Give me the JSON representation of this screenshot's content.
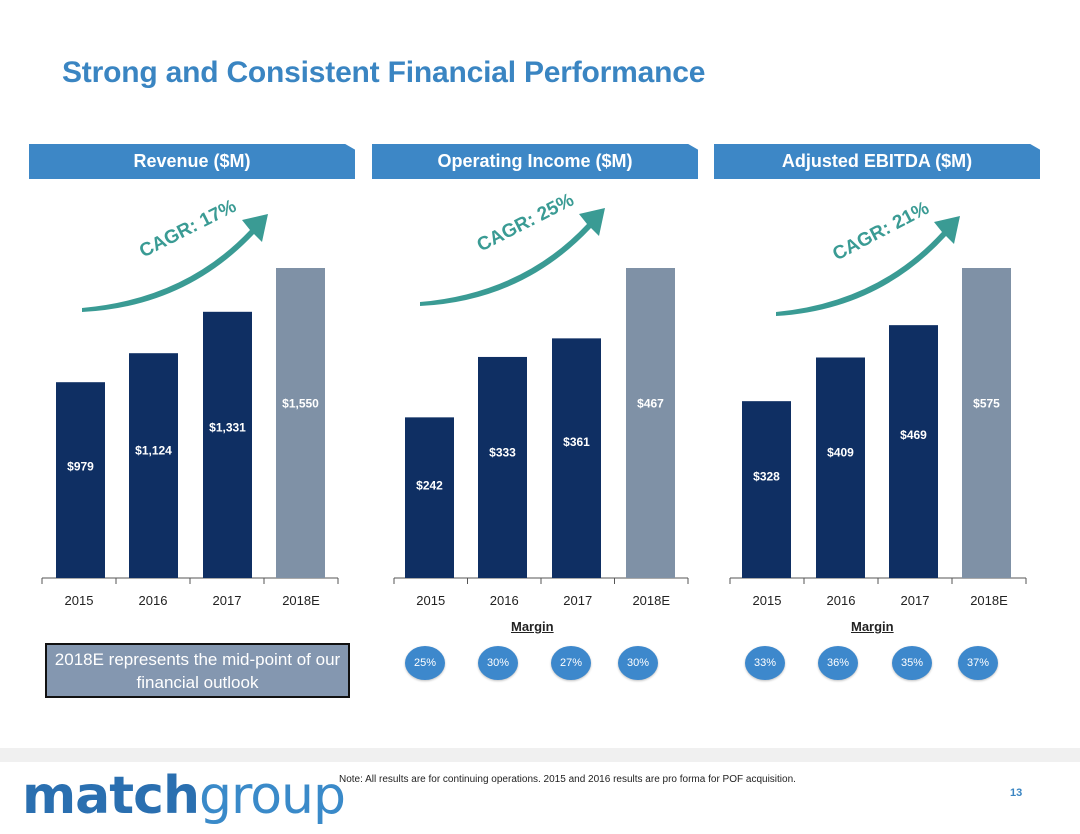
{
  "slide": {
    "title": "Strong and Consistent Financial Performance",
    "page_number": "13",
    "footnote": "Note: All results are for continuing operations. 2015 and 2016 results are pro forma for POF acquisition.",
    "outlook_note": "2018E represents the mid-point of our financial outlook",
    "logo_part1": "match",
    "logo_part2": "group"
  },
  "colors": {
    "actual": "#0f2f63",
    "estimate": "#7f91a6",
    "arrow": "#3a9b94",
    "header": "#3d87c6"
  },
  "chart_data": [
    {
      "type": "bar",
      "title": "Revenue ($M)",
      "cagr": "CAGR: 17%",
      "categories": [
        "2015",
        "2016",
        "2017",
        "2018E"
      ],
      "values": [
        979,
        1124,
        1331,
        1550
      ],
      "labels": [
        "$979",
        "$1,124",
        "$1,331",
        "$1,550"
      ]
    },
    {
      "type": "bar",
      "title": "Operating Income ($M)",
      "cagr": "CAGR: 25%",
      "categories": [
        "2015",
        "2016",
        "2017",
        "2018E"
      ],
      "values": [
        242,
        333,
        361,
        467
      ],
      "labels": [
        "$242",
        "$333",
        "$361",
        "$467"
      ],
      "margin_title": "Margin",
      "margins": [
        "25%",
        "30%",
        "27%",
        "30%"
      ]
    },
    {
      "type": "bar",
      "title": "Adjusted EBITDA ($M)",
      "cagr": "CAGR: 21%",
      "categories": [
        "2015",
        "2016",
        "2017",
        "2018E"
      ],
      "values": [
        328,
        409,
        469,
        575
      ],
      "labels": [
        "$328",
        "$409",
        "$469",
        "$575"
      ],
      "margin_title": "Margin",
      "margins": [
        "33%",
        "36%",
        "35%",
        "37%"
      ]
    }
  ]
}
